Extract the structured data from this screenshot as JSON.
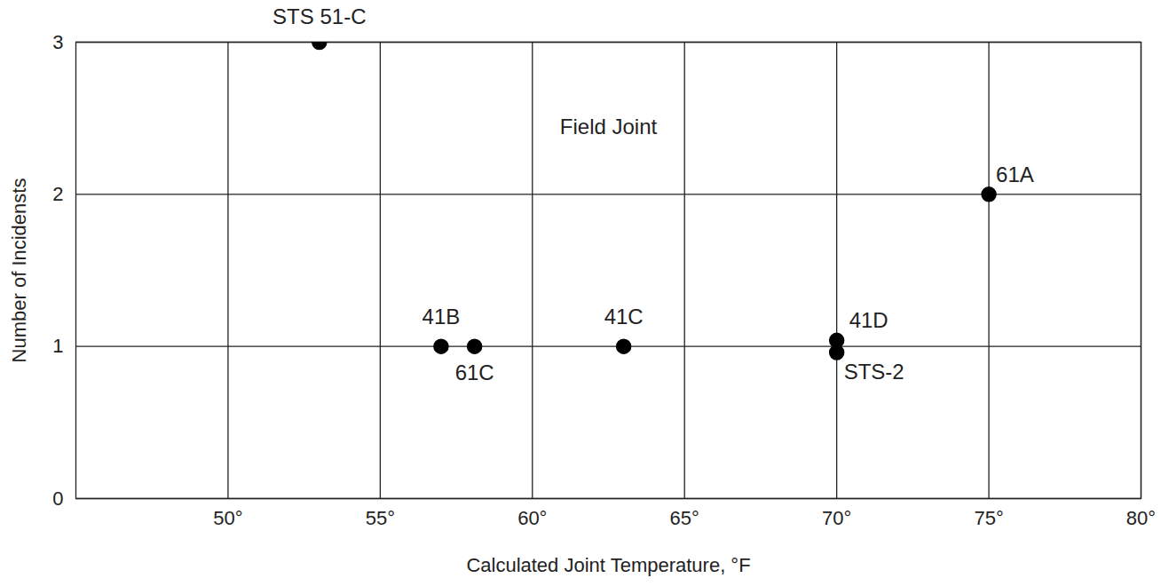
{
  "chart_data": {
    "type": "scatter",
    "annotation": "Field Joint",
    "x_label": "Calculated Joint Temperature, °F",
    "y_label": "Number of Incidensts",
    "x": [
      53,
      57,
      58.1,
      63,
      70,
      70,
      75
    ],
    "values": [
      3,
      1,
      1,
      1,
      1.04,
      0.96,
      2
    ],
    "point_labels": [
      "STS 51-C",
      "41B",
      "61C",
      "41C",
      "41D",
      "STS-2",
      "61A"
    ],
    "color": "#000000",
    "marker": "circle",
    "xlim": [
      45,
      80
    ],
    "xticks": [
      {
        "value": 50,
        "label": "50°"
      },
      {
        "value": 55,
        "label": "55°"
      },
      {
        "value": 60,
        "label": "60°"
      },
      {
        "value": 65,
        "label": "65°"
      },
      {
        "value": 70,
        "label": "70°"
      },
      {
        "value": 75,
        "label": "75°"
      },
      {
        "value": 80,
        "label": "80°"
      }
    ],
    "ylim": [
      0,
      3
    ],
    "yticks": [
      0,
      1,
      2,
      3
    ],
    "grid": true
  }
}
